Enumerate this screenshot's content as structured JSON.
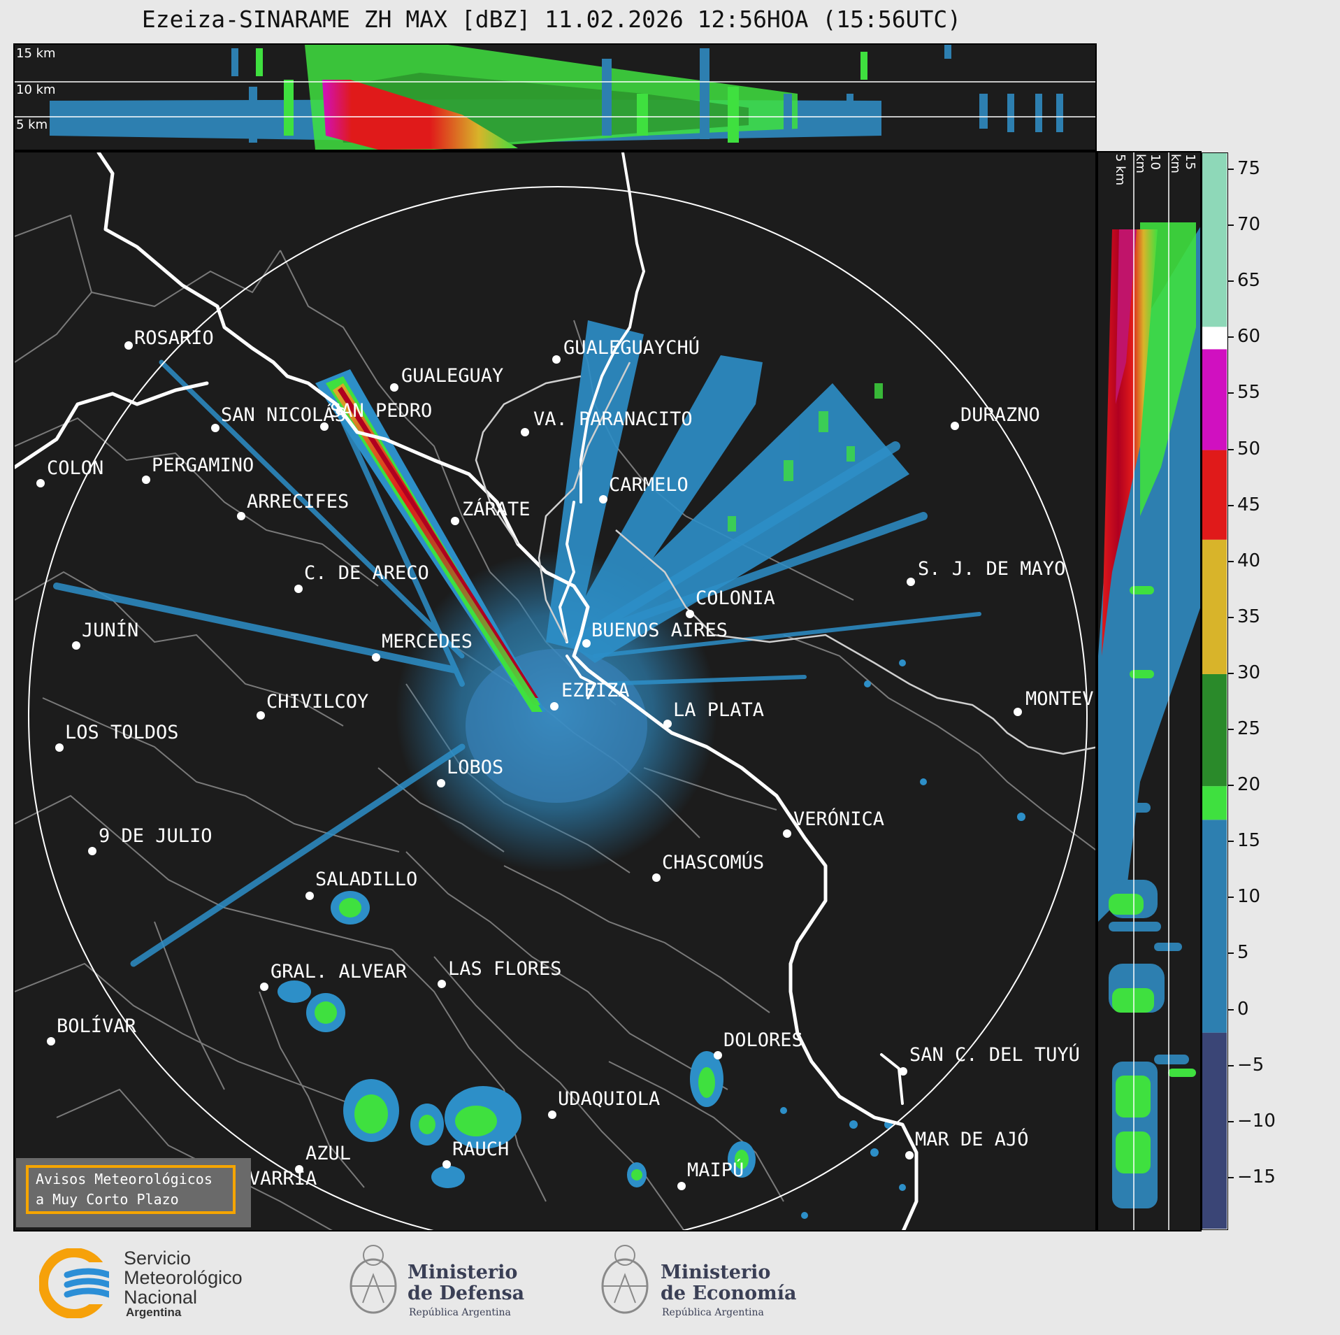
{
  "header": {
    "title": "Ezeiza-SINARAME ZH MAX [dBZ] 11.02.2026 12:56HOA (15:56UTC)"
  },
  "top_panel": {
    "height_labels": [
      "15 km",
      "10 km",
      "5 km"
    ]
  },
  "side_panel": {
    "height_labels": [
      "5 km",
      "10 km",
      "15 km"
    ]
  },
  "colorbar": {
    "unit": "dBZ",
    "ticks": [
      "75",
      "70",
      "65",
      "60",
      "55",
      "50",
      "45",
      "40",
      "35",
      "30",
      "25",
      "20",
      "15",
      "10",
      "5",
      "0",
      "−5",
      "−10",
      "−15"
    ],
    "tick_values": [
      75,
      70,
      65,
      60,
      55,
      50,
      45,
      40,
      35,
      30,
      25,
      20,
      15,
      10,
      5,
      0,
      -5,
      -10,
      -15
    ],
    "range": [
      -19.5,
      76.5
    ],
    "colors": [
      {
        "from": -19.5,
        "to": -2,
        "color": "#3a4576"
      },
      {
        "from": -2,
        "to": 17,
        "color": "#2d7fb0"
      },
      {
        "from": 17,
        "to": 20,
        "color": "#3fe03f"
      },
      {
        "from": 20,
        "to": 30,
        "color": "#2a8a2a"
      },
      {
        "from": 30,
        "to": 42,
        "color": "#d8b42a"
      },
      {
        "from": 42,
        "to": 50,
        "color": "#e01a1a"
      },
      {
        "from": 50,
        "to": 59,
        "color": "#d010c0"
      },
      {
        "from": 59,
        "to": 61,
        "color": "#ffffff"
      },
      {
        "from": 61,
        "to": 76.5,
        "color": "#8ed8b8"
      }
    ]
  },
  "cities": [
    {
      "name": "ROSARIO"
    },
    {
      "name": "GUALEGUAYCHÚ"
    },
    {
      "name": "GUALEGUAY"
    },
    {
      "name": "SAN NICOLÁS"
    },
    {
      "name": "DURAZNO"
    },
    {
      "name": "SAN PEDRO"
    },
    {
      "name": "VA. PARANACITO"
    },
    {
      "name": "COLON"
    },
    {
      "name": "PERGAMINO"
    },
    {
      "name": "CARMELO"
    },
    {
      "name": "ARRECIFES"
    },
    {
      "name": "ZÁRATE"
    },
    {
      "name": "S. J. DE MAYO"
    },
    {
      "name": "C. DE ARECO"
    },
    {
      "name": "COLONIA"
    },
    {
      "name": "JUNÍN"
    },
    {
      "name": "BUENOS AIRES"
    },
    {
      "name": "MERCEDES"
    },
    {
      "name": "MONTEVIDEO"
    },
    {
      "name": "EZEIZA"
    },
    {
      "name": "CHIVILCOY"
    },
    {
      "name": "LA PLATA"
    },
    {
      "name": "LOS TOLDOS"
    },
    {
      "name": "LOBOS"
    },
    {
      "name": "VERÓNICA"
    },
    {
      "name": "9 DE JULIO"
    },
    {
      "name": "CHASCOMÚS"
    },
    {
      "name": "SALADILLO"
    },
    {
      "name": "GRAL. ALVEAR"
    },
    {
      "name": "LAS FLORES"
    },
    {
      "name": "BOLÍVAR"
    },
    {
      "name": "DOLORES"
    },
    {
      "name": "SAN C. DEL TUYÚ"
    },
    {
      "name": "UDAQUIOLA"
    },
    {
      "name": "MAR DE AJÓ"
    },
    {
      "name": "AZUL"
    },
    {
      "name": "RAUCH"
    },
    {
      "name": "OLAVARRÍA"
    },
    {
      "name": "MAIPÚ"
    }
  ],
  "avisos": {
    "line1": "Avisos Meteorológicos",
    "line2": "a Muy Corto Plazo"
  },
  "footer": {
    "smn": {
      "line1": "Servicio",
      "line2": "Meteorológico",
      "line3": "Nacional",
      "line4": "Argentina"
    },
    "defensa": {
      "line1": "Ministerio",
      "line2": "de Defensa",
      "sub": "República Argentina"
    },
    "economia": {
      "line1": "Ministerio",
      "line2": "de Economía",
      "sub": "República Argentina"
    }
  },
  "colors": {
    "panel_bg": "#1c1c1c",
    "accent_orange": "#f5a500",
    "smn_blue": "#2b8ed6",
    "smn_orange": "#f6a10a"
  }
}
